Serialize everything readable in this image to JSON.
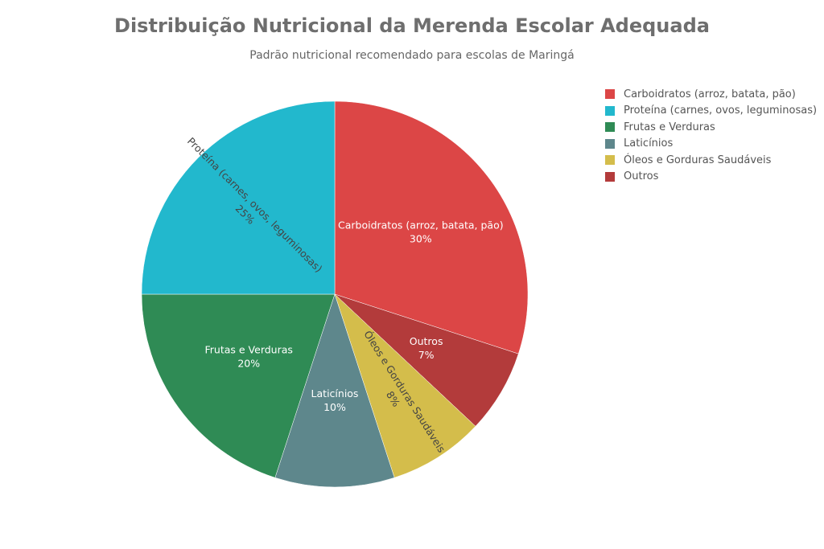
{
  "chart_data": {
    "type": "pie",
    "title": "Distribuição Nutricional da Merenda Escolar Adequada",
    "subtitle": "Padrão nutricional recomendado para escolas de Maringá",
    "legend_position": "top-right",
    "slices": [
      {
        "label": "Carboidratos (arroz, batata, pão)",
        "value": 30,
        "value_label": "30%",
        "color": "#dc4646",
        "text_color": "#ffffff",
        "rotate": false
      },
      {
        "label": "Outros",
        "value": 7,
        "value_label": "7%",
        "color": "#b33b3b",
        "text_color": "#ffffff",
        "rotate": false
      },
      {
        "label": "Óleos e Gorduras Saudáveis",
        "value": 8,
        "value_label": "8%",
        "color": "#d4bd4b",
        "text_color": "#444444",
        "rotate": true
      },
      {
        "label": "Laticínios",
        "value": 10,
        "value_label": "10%",
        "color": "#5e878c",
        "text_color": "#ffffff",
        "rotate": false
      },
      {
        "label": "Frutas e Verduras",
        "value": 20,
        "value_label": "20%",
        "color": "#2f8b55",
        "text_color": "#ffffff",
        "rotate": false
      },
      {
        "label": "Proteína (carnes, ovos, leguminosas)",
        "value": 25,
        "value_label": "25%",
        "color": "#22b8cd",
        "text_color": "#444444",
        "rotate": true
      }
    ],
    "legend": [
      {
        "label": "Carboidratos (arroz, batata, pão)",
        "color": "#dc4646"
      },
      {
        "label": "Proteína (carnes, ovos, leguminosas)",
        "color": "#22b8cd"
      },
      {
        "label": "Frutas e Verduras",
        "color": "#2f8b55"
      },
      {
        "label": "Laticínios",
        "color": "#5e878c"
      },
      {
        "label": "Óleos e Gorduras Saudáveis",
        "color": "#d4bd4b"
      },
      {
        "label": "Outros",
        "color": "#b33b3b"
      }
    ]
  }
}
